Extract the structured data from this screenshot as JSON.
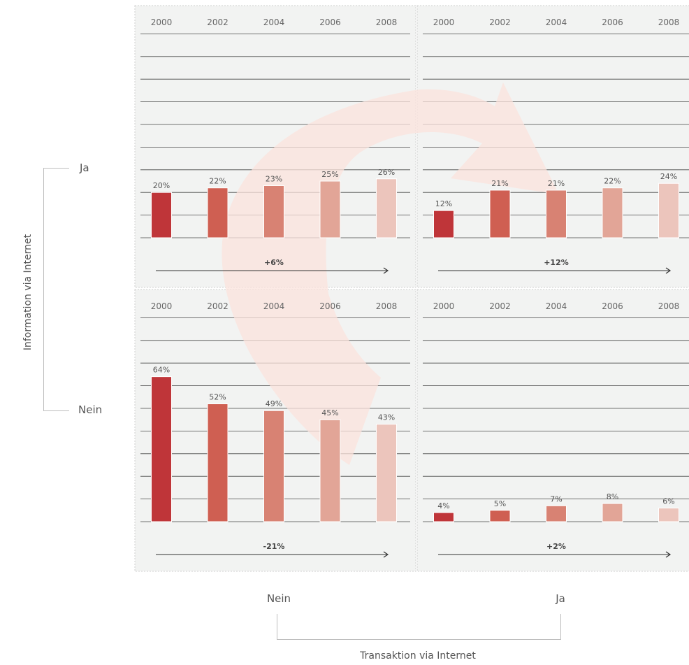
{
  "chart_data": {
    "type": "bar",
    "row_axis_title": "Information via Internet",
    "col_axis_title": "Transaktion via Internet",
    "row_labels": [
      "Ja",
      "Nein"
    ],
    "col_labels": [
      "Nein",
      "Ja"
    ],
    "categories": [
      "2000",
      "2002",
      "2004",
      "2006",
      "2008"
    ],
    "ylim": [
      0,
      100
    ],
    "grid": true,
    "colors": [
      "#bf3539",
      "#cf5f52",
      "#d88273",
      "#e2a597",
      "#ecc5bc"
    ],
    "arrow_color": "#fbe3dc",
    "panels": [
      {
        "row": "Ja",
        "col": "Nein",
        "values": [
          20,
          22,
          23,
          25,
          26
        ],
        "labels": [
          "20%",
          "22%",
          "23%",
          "25%",
          "26%"
        ],
        "change": "+6%"
      },
      {
        "row": "Ja",
        "col": "Ja",
        "values": [
          12,
          21,
          21,
          22,
          24
        ],
        "labels": [
          "12%",
          "21%",
          "21%",
          "22%",
          "24%"
        ],
        "change": "+12%"
      },
      {
        "row": "Nein",
        "col": "Nein",
        "values": [
          64,
          52,
          49,
          45,
          43
        ],
        "labels": [
          "64%",
          "52%",
          "49%",
          "45%",
          "43%"
        ],
        "change": "-21%"
      },
      {
        "row": "Nein",
        "col": "Ja",
        "values": [
          4,
          5,
          7,
          8,
          6
        ],
        "labels": [
          "4%",
          "5%",
          "7%",
          "8%",
          "6%"
        ],
        "change": "+2%"
      }
    ]
  }
}
